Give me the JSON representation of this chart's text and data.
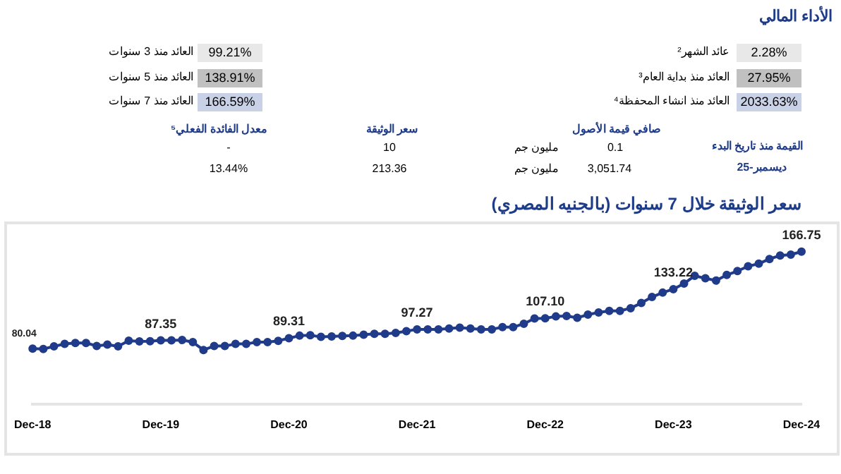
{
  "chart_data": [
    {
      "type": "other",
      "title": "الأداء المالي",
      "annotations": [
        "عائد الشهر²",
        "2.28%",
        "العائد منذ بداية العام³",
        "27.95%",
        "العائد منذ انشاء المحفظة⁴",
        "2033.63%",
        "العائد منذ 3 سنوات",
        "99.21%",
        "العائد منذ 5 سنوات",
        "138.91%",
        "العائد منذ 7 سنوات",
        "166.59%",
        "القيمة منذ تاريخ البدء",
        "ديسمبر-25",
        "صافي قيمة الأصول",
        "0.1",
        "مليون جم",
        "3,051.74",
        "مليون جم",
        "سعر الوثيقة",
        "10",
        "213.36",
        "معدل الفائدة الفعلي⁵",
        "-",
        "13.44%"
      ]
    },
    {
      "type": "line",
      "title": "سعر الوثيقة خلال 7 سنوات (بالجنيه المصري)",
      "marker": "circle",
      "line_style": "solid",
      "legend": false,
      "grid": false,
      "tick_labels": "x",
      "categories": [
        "Dec-18",
        null,
        null,
        null,
        null,
        null,
        null,
        null,
        null,
        null,
        null,
        null,
        "Dec-19",
        null,
        null,
        null,
        null,
        null,
        null,
        null,
        null,
        null,
        null,
        null,
        "Dec-20",
        null,
        null,
        null,
        null,
        null,
        null,
        null,
        null,
        null,
        null,
        null,
        "Dec-21",
        null,
        null,
        null,
        null,
        null,
        null,
        null,
        null,
        null,
        null,
        null,
        "Dec-22",
        null,
        null,
        null,
        null,
        null,
        null,
        null,
        null,
        null,
        null,
        null,
        "Dec-23",
        null,
        null,
        null,
        null,
        null,
        null,
        null,
        null,
        null,
        null,
        null,
        "Dec-24"
      ],
      "series": [
        {
          "color": "#1f3b8a",
          "values": [
            80.04,
            79.65,
            82.0,
            84.3,
            85.1,
            85.1,
            82.4,
            83.6,
            82.0,
            87.1,
            86.4,
            86.7,
            87.35,
            87.35,
            87.7,
            85.8,
            78.8,
            82.3,
            82.3,
            84.2,
            84.2,
            85.8,
            85.8,
            87.0,
            89.31,
            91.6,
            92.0,
            90.5,
            90.9,
            91.3,
            91.6,
            92.4,
            93.2,
            93.2,
            94.0,
            95.6,
            97.27,
            97.27,
            97.27,
            98.0,
            98.8,
            98.0,
            97.27,
            97.27,
            99.2,
            99.2,
            102.3,
            107.0,
            107.1,
            108.8,
            109.2,
            107.6,
            110.4,
            112.3,
            113.8,
            113.8,
            116.2,
            120.8,
            126.2,
            130.1,
            133.22,
            138.2,
            145.2,
            142.9,
            140.9,
            145.9,
            149.4,
            153.7,
            156.0,
            160.2,
            163.3,
            164.1,
            166.75
          ],
          "value_labels": [
            "80.04",
            null,
            null,
            null,
            null,
            null,
            null,
            null,
            null,
            null,
            null,
            null,
            "87.35",
            null,
            null,
            null,
            null,
            null,
            null,
            null,
            null,
            null,
            null,
            null,
            "89.31",
            null,
            null,
            null,
            null,
            null,
            null,
            null,
            null,
            null,
            null,
            null,
            "97.27",
            null,
            null,
            null,
            null,
            null,
            null,
            null,
            null,
            null,
            null,
            null,
            "107.10",
            null,
            null,
            null,
            null,
            null,
            null,
            null,
            null,
            null,
            null,
            null,
            "133.22",
            null,
            null,
            null,
            null,
            null,
            null,
            null,
            null,
            null,
            null,
            null,
            "166.75"
          ]
        }
      ]
    }
  ]
}
